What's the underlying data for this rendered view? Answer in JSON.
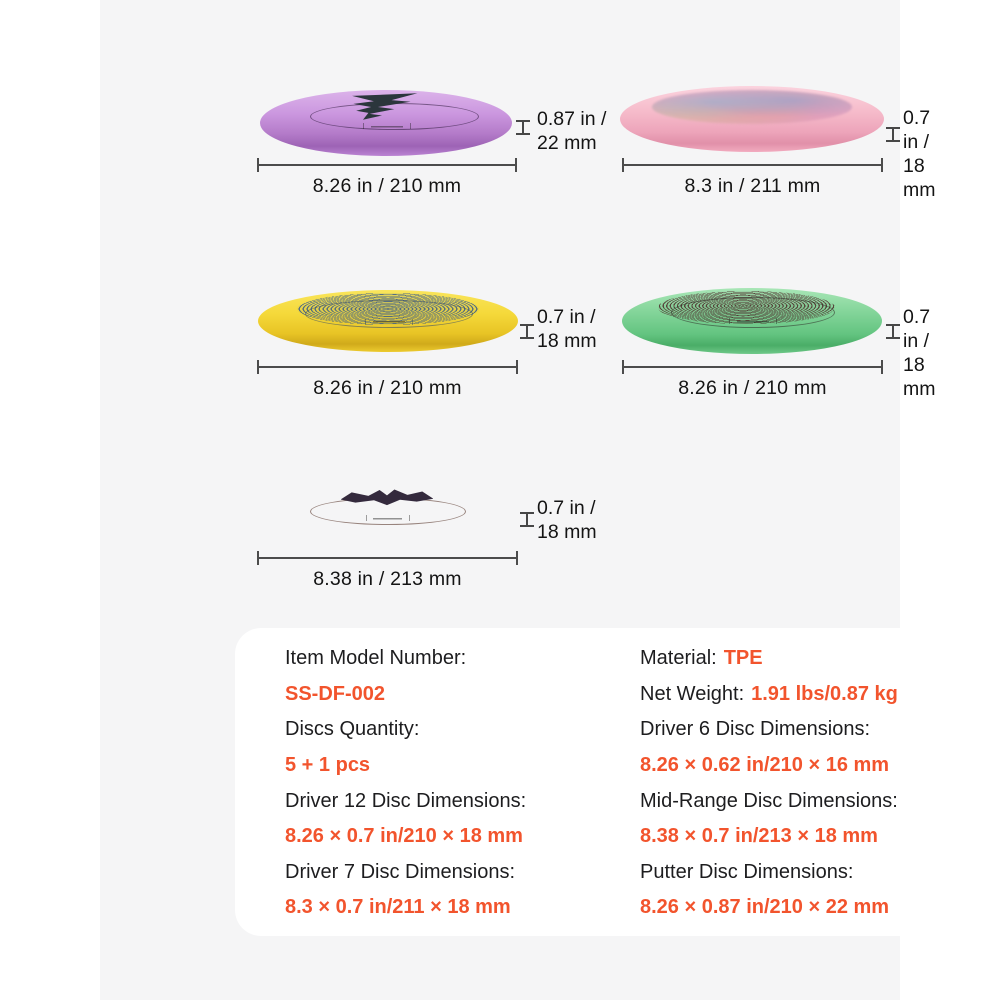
{
  "colors": {
    "accent": "#F2542D",
    "stage_background": "#F5F5F6",
    "panel_background": "#FFFFFF",
    "dimension_line": "#4C4C4C",
    "text": "#1A1A1A"
  },
  "discs": [
    {
      "position": "top-left",
      "color_name": "purple",
      "body_color": "#BC84D2",
      "width_label": "8.26 in / 210 mm",
      "height_line1": "0.87 in /",
      "height_line2": "22 mm"
    },
    {
      "position": "top-right",
      "color_name": "pink",
      "body_color": "#F3B7C8",
      "width_label": "8.3 in / 211 mm",
      "height_line1": "0.7 in /",
      "height_line2": "18 mm"
    },
    {
      "position": "middle-left",
      "color_name": "yellow",
      "body_color": "#F2D636",
      "width_label": "8.26 in / 210 mm",
      "height_line1": "0.7 in /",
      "height_line2": "18 mm"
    },
    {
      "position": "middle-right",
      "color_name": "green",
      "body_color": "#7BD295",
      "width_label": "8.26 in / 210 mm",
      "height_line1": "0.7 in /",
      "height_line2": "18 mm"
    },
    {
      "position": "bottom-left",
      "color_name": "orange",
      "body_color": "#F0581E",
      "width_label": "8.38 in / 213 mm",
      "height_line1": "0.7 in /",
      "height_line2": "18 mm"
    }
  ],
  "specs": {
    "left": [
      {
        "label": "Item Model Number:",
        "value": "SS-DF-002"
      },
      {
        "label": "Discs Quantity:",
        "value": "5 + 1 pcs"
      },
      {
        "label": "Driver 12 Disc Dimensions:",
        "value": "8.26 × 0.7 in/210 × 18 mm"
      },
      {
        "label": "Driver 7 Disc Dimensions:",
        "value": "8.3 × 0.7 in/211 × 18 mm"
      }
    ],
    "right": [
      {
        "label": "Material:",
        "value": "TPE"
      },
      {
        "label": "Net Weight:",
        "value": "1.91 lbs/0.87 kg"
      },
      {
        "label": "Driver 6 Disc Dimensions:",
        "value": "8.26 × 0.62 in/210 × 16 mm"
      },
      {
        "label": "Mid-Range Disc Dimensions:",
        "value": "8.38 × 0.7 in/213 × 18 mm"
      },
      {
        "label": "Putter Disc Dimensions:",
        "value": "8.26 × 0.87 in/210 × 22 mm"
      }
    ]
  }
}
